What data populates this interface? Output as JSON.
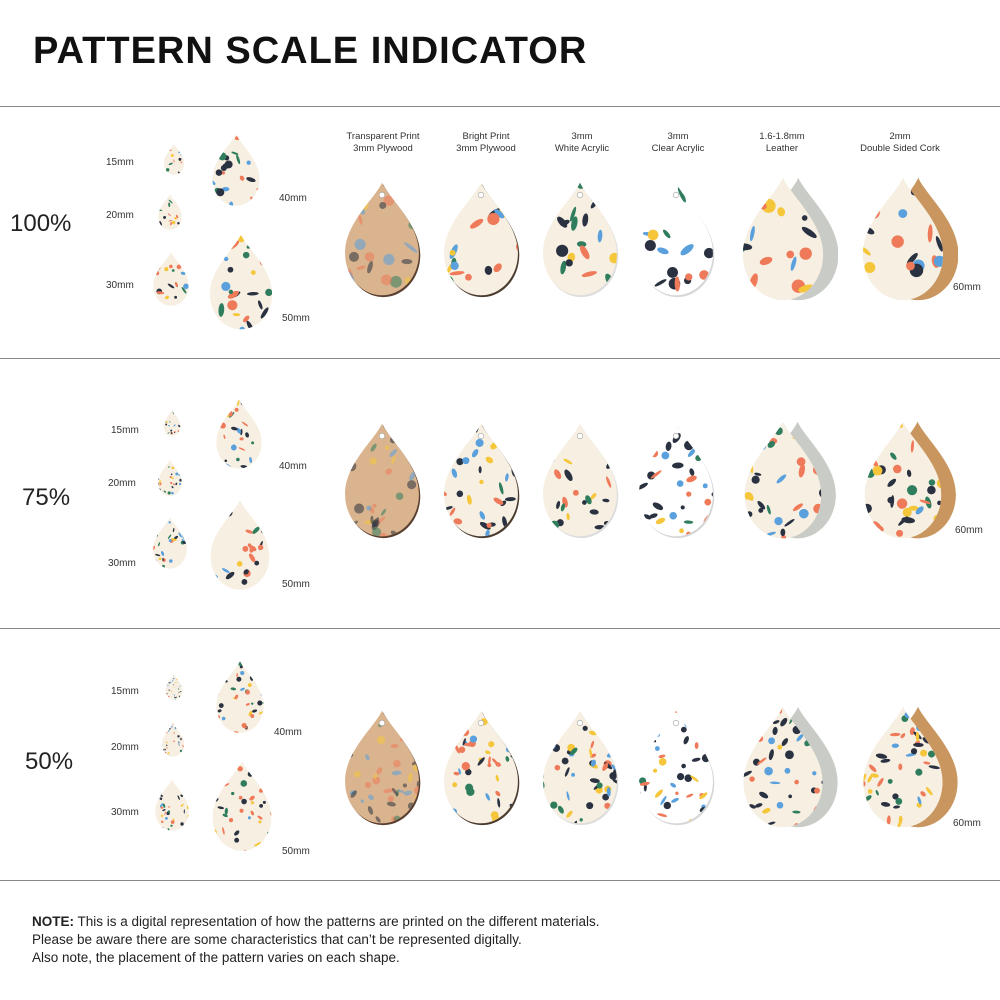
{
  "title": "PATTERN SCALE INDICATOR",
  "materials": [
    "Transparent Print\n3mm Plywood",
    "Bright Print\n3mm Plywood",
    "3mm\nWhite Acrylic",
    "3mm\nClear Acrylic",
    "1.6-1.8mm\nLeather",
    "2mm\nDouble Sided Cork"
  ],
  "size_labels": {
    "s15": "15mm",
    "s20": "20mm",
    "s30": "30mm",
    "s40": "40mm",
    "s50": "50mm",
    "s60": "60mm"
  },
  "sections": [
    {
      "scale": "100%"
    },
    {
      "scale": "75%"
    },
    {
      "scale": "50%"
    }
  ],
  "note": {
    "label": "NOTE:",
    "line1": " This is a digital representation of how the patterns are printed on the different materials.",
    "line2": "Please be aware there are some characteristics that can’t be represented digitally.",
    "line3": "Also note, the placement of the pattern varies on each shape."
  },
  "colors": {
    "coral": "#ef7a5a",
    "navy": "#2a3140",
    "blue": "#5aa0dc",
    "yellow": "#f5c63a",
    "green": "#2f7d5c",
    "cream": "#f6efe2",
    "leather": "#c9ccc6",
    "cork": "#c8965e",
    "plywood": "#d9b48e"
  }
}
